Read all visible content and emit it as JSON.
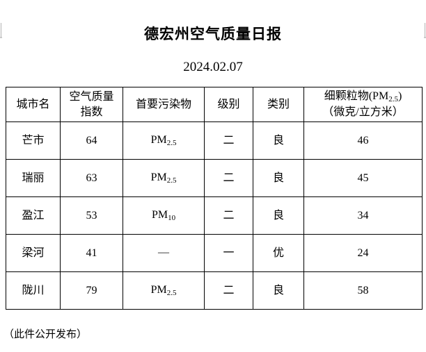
{
  "document": {
    "title": "德宏州空气质量日报",
    "date": "2024.02.07",
    "footnote": "（此件公开发布）"
  },
  "table": {
    "headers": {
      "city": "城市名",
      "aqi_line1": "空气质量",
      "aqi_line2": "指数",
      "pollutant": "首要污染物",
      "level": "级别",
      "category": "类别",
      "pm_prefix": "细颗粒物(PM",
      "pm_sub": "2.5",
      "pm_suffix": ")",
      "pm_line2": "（微克/立方米）"
    },
    "rows": [
      {
        "city": "芒市",
        "aqi": "64",
        "pollutant_base": "PM",
        "pollutant_sub": "2.5",
        "level": "二",
        "category": "良",
        "pm25": "46"
      },
      {
        "city": "瑞丽",
        "aqi": "63",
        "pollutant_base": "PM",
        "pollutant_sub": "2.5",
        "level": "二",
        "category": "良",
        "pm25": "45"
      },
      {
        "city": "盈江",
        "aqi": "53",
        "pollutant_base": "PM",
        "pollutant_sub": "10",
        "level": "二",
        "category": "良",
        "pm25": "34"
      },
      {
        "city": "梁河",
        "aqi": "41",
        "pollutant_base": "—",
        "pollutant_sub": "",
        "level": "一",
        "category": "优",
        "pm25": "24"
      },
      {
        "city": "陇川",
        "aqi": "79",
        "pollutant_base": "PM",
        "pollutant_sub": "2.5",
        "level": "二",
        "category": "良",
        "pm25": "58"
      }
    ]
  }
}
